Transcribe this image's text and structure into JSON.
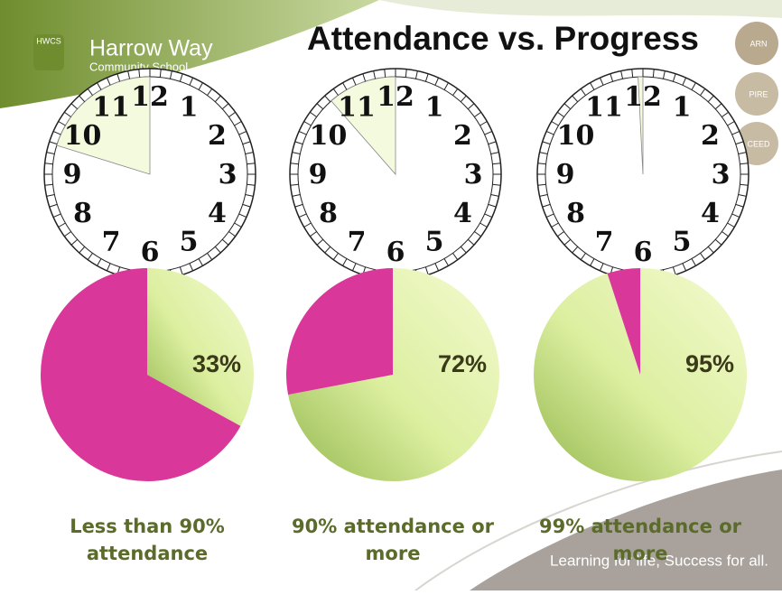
{
  "slide": {
    "title": "Attendance vs. Progress",
    "logo_badge": "HWCS",
    "logo_name": "Harrow Way",
    "logo_sub": "Community School",
    "buttons": [
      "ARN",
      "PIRE",
      "CEED"
    ],
    "footer": "Learning for life, Success for all."
  },
  "clock_numerals": [
    "12",
    "1",
    "2",
    "3",
    "4",
    "5",
    "6",
    "7",
    "8",
    "9",
    "10",
    "11"
  ],
  "chart_data": [
    {
      "type": "pie",
      "title": "Less than 90% attendance",
      "values": [
        33,
        67
      ],
      "value_labels": [
        "33%",
        null
      ],
      "colors": [
        "#e9f4b0",
        "#d9379a"
      ]
    },
    {
      "type": "pie",
      "title": "90% attendance or more",
      "values": [
        72,
        28
      ],
      "value_labels": [
        "72%",
        null
      ],
      "colors": [
        "#e9f4b0",
        "#d9379a"
      ]
    },
    {
      "type": "pie",
      "title": "99% attendance or more",
      "values": [
        95,
        5
      ],
      "value_labels": [
        "95%",
        null
      ],
      "colors": [
        "#e9f4b0",
        "#d9379a"
      ]
    }
  ]
}
